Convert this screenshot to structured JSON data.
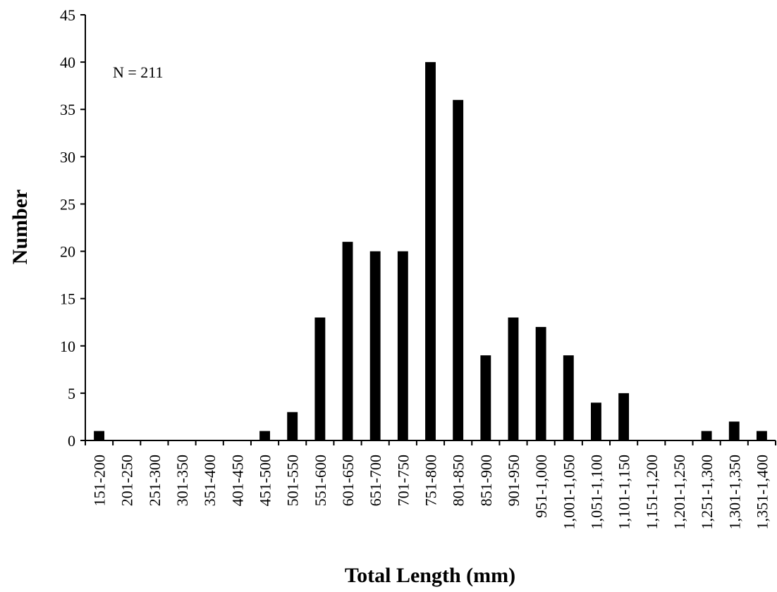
{
  "colors": {
    "bar": "#000000",
    "axis": "#000000",
    "background": "#ffffff"
  },
  "chart_data": {
    "type": "bar",
    "title": "",
    "xlabel": "Total Length (mm)",
    "ylabel": "Number",
    "annotation": "N = 211",
    "ylim": [
      0,
      45
    ],
    "yticks": [
      0,
      5,
      10,
      15,
      20,
      25,
      30,
      35,
      40,
      45
    ],
    "grid": false,
    "legend": "none",
    "categories": [
      "151-200",
      "201-250",
      "251-300",
      "301-350",
      "351-400",
      "401-450",
      "451-500",
      "501-550",
      "551-600",
      "601-650",
      "651-700",
      "701-750",
      "751-800",
      "801-850",
      "851-900",
      "901-950",
      "951-1,000",
      "1,001-1,050",
      "1,051-1,100",
      "1,101-1,150",
      "1,151-1,200",
      "1,201-1,250",
      "1,251-1,300",
      "1,301-1,350",
      "1,351-1,400"
    ],
    "values": [
      1,
      0,
      0,
      0,
      0,
      0,
      1,
      3,
      13,
      21,
      20,
      20,
      40,
      36,
      9,
      13,
      12,
      9,
      4,
      5,
      0,
      0,
      1,
      2,
      1
    ]
  }
}
